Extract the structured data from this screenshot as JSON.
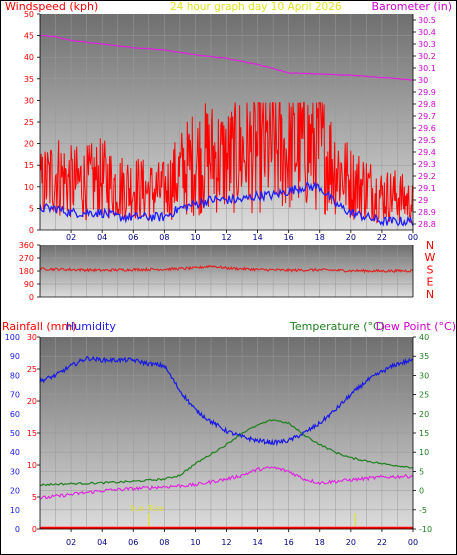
{
  "header": {
    "left_label": "Windspeed (kph)",
    "title": "24 hour graph day   10 April 2026",
    "right_label": "Barometer (in)"
  },
  "lower_header": {
    "rainfall_label": "Rainfall (mm)",
    "humidity_label": "Humidity",
    "temperature_label": "Temperature (°C)",
    "dewpoint_label": "Dew Point (°C)"
  },
  "colors": {
    "background": "#ffffff",
    "plot_top": "#7a7a7a",
    "plot_bottom": "#d8d8d8",
    "windspeed_gust": "#ff0000",
    "windspeed_avg": "#2020ff",
    "barometer": "#e020e0",
    "direction": "#e02020",
    "humidity": "#1a1ae6",
    "temperature": "#208020",
    "dewpoint": "#e020e0",
    "rainfall": "#ff0000",
    "sun_marker": "#e0e040",
    "axis_text": "#000000",
    "wind_axis_text": "#ff0000",
    "baro_axis_text": "#cc00cc",
    "time_text": "#000080"
  },
  "chart_data": [
    {
      "type": "line",
      "name": "wind-barometer",
      "x_ticks": [
        "02",
        "04",
        "06",
        "08",
        "10",
        "12",
        "14",
        "16",
        "18",
        "20",
        "22",
        "00"
      ],
      "left_axis": {
        "label": "Windspeed (kph)",
        "range": [
          0,
          50
        ],
        "ticks": [
          "0",
          "5",
          "10",
          "15",
          "20",
          "25",
          "30",
          "35",
          "40",
          "45",
          "50"
        ]
      },
      "right_axis": {
        "label": "Barometer (in)",
        "range": [
          28.75,
          30.55
        ],
        "ticks": [
          "28.8",
          "28.9",
          "29",
          "29.1",
          "29.2",
          "29.3",
          "29.4",
          "29.5",
          "29.6",
          "29.7",
          "29.8",
          "29.9",
          "30",
          "30.1",
          "30.2",
          "30.3",
          "30.4",
          "30.5"
        ]
      },
      "series": [
        {
          "axis": "right",
          "hours": [
            0,
            1,
            2,
            4,
            6,
            8,
            10,
            12,
            14,
            16,
            18,
            20,
            22,
            24
          ],
          "values": [
            30.37,
            30.36,
            30.33,
            30.3,
            30.27,
            30.25,
            30.21,
            30.18,
            30.13,
            30.06,
            30.05,
            30.04,
            30.02,
            30.0
          ]
        },
        {
          "axis": "left",
          "hours": [
            0,
            1,
            2,
            3,
            4,
            5,
            6,
            7,
            8,
            9,
            10,
            11,
            12,
            13,
            14,
            15,
            16,
            17,
            18,
            19,
            20,
            21,
            22,
            23,
            24
          ],
          "values": [
            10,
            13,
            11,
            11,
            12,
            10,
            10,
            9,
            9,
            13,
            16,
            17,
            16,
            18,
            18,
            19,
            18,
            20,
            19,
            15,
            11,
            10,
            8,
            8,
            6
          ]
        },
        {
          "axis": "left",
          "hours": [
            0,
            1,
            2,
            3,
            4,
            5,
            6,
            7,
            8,
            9,
            10,
            11,
            12,
            13,
            14,
            15,
            16,
            17,
            18,
            19,
            20,
            21,
            22,
            23,
            24
          ],
          "values": [
            5,
            5,
            4,
            4,
            4,
            3,
            3,
            3,
            3,
            5,
            6,
            7,
            7,
            7,
            8,
            8,
            9,
            10,
            10,
            6,
            4,
            3,
            2,
            2,
            2
          ]
        }
      ]
    },
    {
      "type": "line",
      "name": "wind-direction",
      "x_ticks": [
        "02",
        "04",
        "06",
        "08",
        "10",
        "12",
        "14",
        "16",
        "18",
        "20",
        "22",
        "00"
      ],
      "left_axis": {
        "range": [
          0,
          360
        ],
        "ticks": [
          "0",
          "90",
          "180",
          "270",
          "360"
        ]
      },
      "compass": [
        "N",
        "W",
        "S",
        "E",
        "N"
      ],
      "series": [
        {
          "hours": [
            0,
            2,
            4,
            6,
            8,
            10,
            11,
            12,
            14,
            16,
            18,
            20,
            22,
            24
          ],
          "values": [
            195,
            190,
            185,
            190,
            192,
            200,
            215,
            200,
            190,
            185,
            188,
            182,
            180,
            182
          ]
        }
      ]
    },
    {
      "type": "line",
      "name": "rain-humidity-temperature",
      "x_ticks": [
        "02",
        "04",
        "06",
        "08",
        "10",
        "12",
        "14",
        "16",
        "18",
        "20",
        "22",
        "00"
      ],
      "humidity_axis": {
        "label": "Humidity",
        "range": [
          0,
          100
        ],
        "ticks": [
          "0",
          "10",
          "20",
          "30",
          "40",
          "50",
          "60",
          "70",
          "80",
          "90",
          "100"
        ]
      },
      "rainfall_axis": {
        "label": "Rainfall (mm)",
        "range": [
          0,
          30
        ],
        "ticks": [
          "0",
          "5",
          "10",
          "15",
          "20",
          "25",
          "30"
        ]
      },
      "temperature_axis": {
        "label": "Temperature (°C)",
        "range": [
          -10,
          40
        ],
        "ticks": [
          "-10",
          "-5",
          "0",
          "5",
          "10",
          "15",
          "20",
          "25",
          "30",
          "35",
          "40"
        ]
      },
      "series": [
        {
          "axis": "humidity",
          "hours": [
            0,
            1,
            2,
            3,
            4,
            5,
            6,
            7,
            8,
            9,
            10,
            11,
            12,
            13,
            14,
            15,
            16,
            17,
            18,
            19,
            20,
            21,
            22,
            23,
            24
          ],
          "values": [
            77,
            80,
            85,
            89,
            88,
            88,
            88,
            86,
            85,
            72,
            62,
            56,
            51,
            48,
            46,
            45,
            46,
            50,
            55,
            62,
            70,
            77,
            82,
            86,
            88
          ]
        },
        {
          "axis": "temperature",
          "hours": [
            0,
            2,
            4,
            6,
            8,
            9,
            10,
            11,
            12,
            13,
            14,
            15,
            16,
            17,
            18,
            19,
            20,
            22,
            24
          ],
          "values": [
            1.5,
            1.8,
            2.0,
            2.4,
            3.0,
            4.0,
            7.0,
            9.5,
            12.0,
            15.0,
            17.0,
            18.5,
            17.5,
            14.5,
            12.0,
            10.0,
            8.5,
            7.0,
            6.0
          ]
        },
        {
          "axis": "temperature",
          "hours": [
            0,
            2,
            4,
            6,
            8,
            10,
            12,
            13,
            14,
            15,
            16,
            17,
            18,
            20,
            22,
            24
          ],
          "values": [
            -2.0,
            -1.0,
            0.0,
            0.5,
            1.0,
            1.5,
            3.0,
            4.0,
            5.5,
            6.0,
            5.0,
            3.0,
            2.0,
            2.8,
            3.5,
            3.8
          ]
        },
        {
          "axis": "rainfall",
          "hours": [
            0,
            24
          ],
          "values": [
            0,
            0
          ]
        }
      ],
      "sun_rise_hour": 7.0,
      "sun_set_hour": 20.3,
      "annotations": [
        "Sun Rise"
      ]
    }
  ]
}
